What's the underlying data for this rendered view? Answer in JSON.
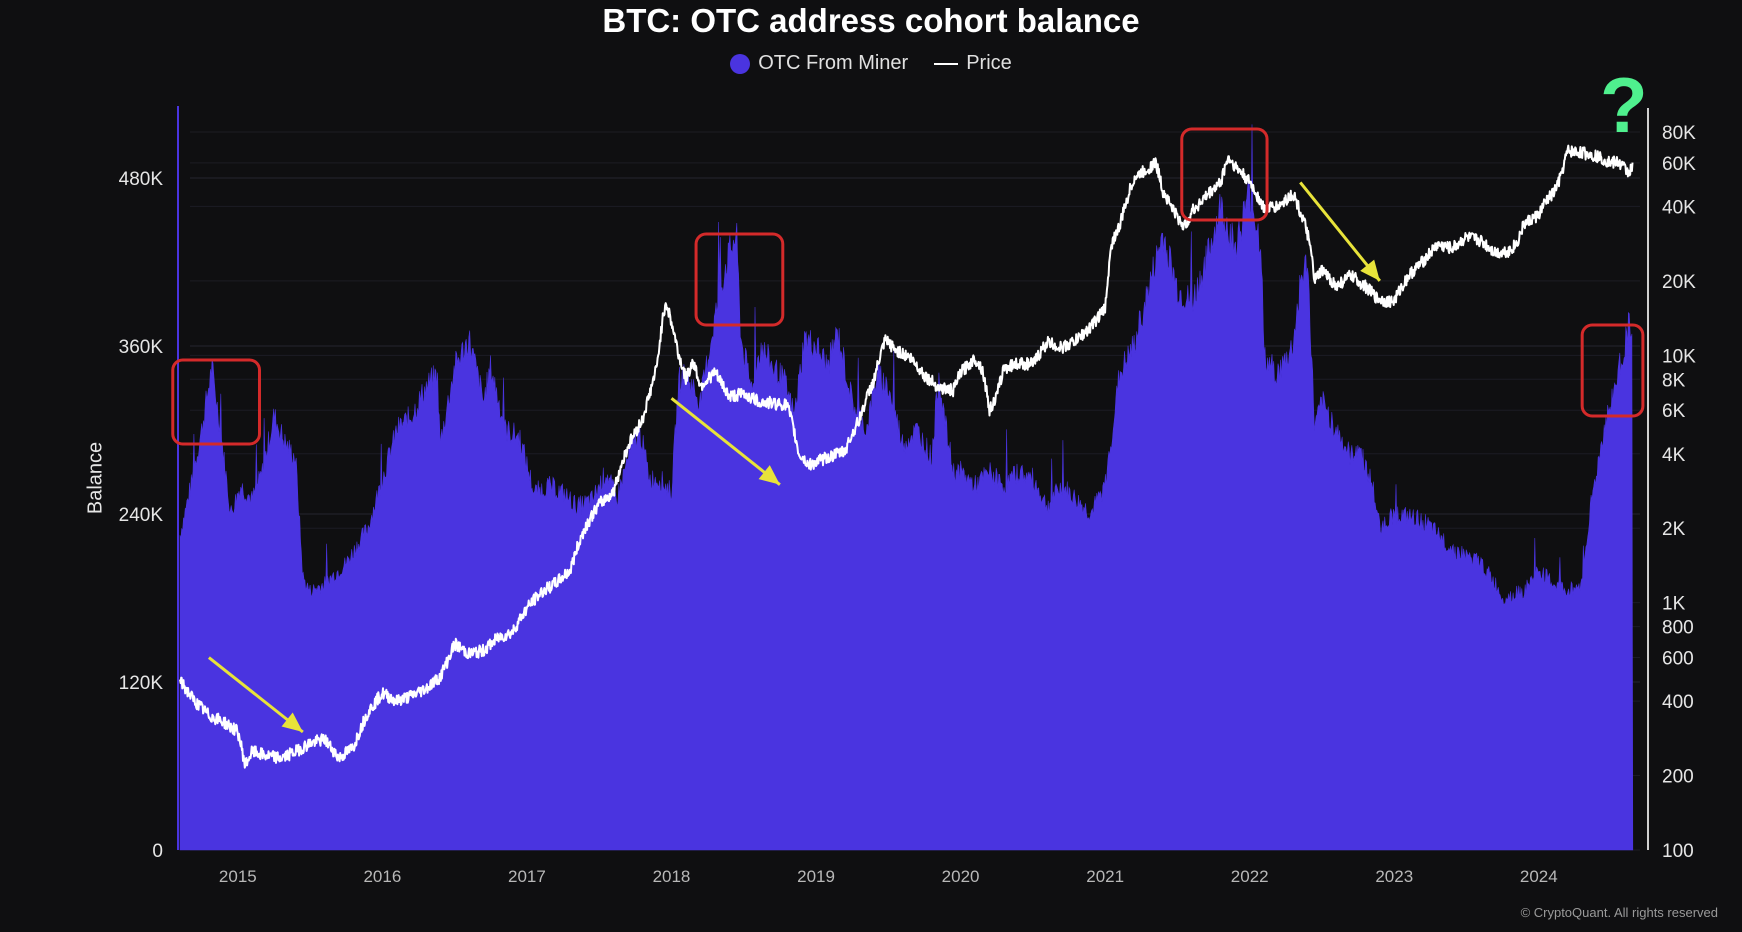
{
  "chart_data": {
    "type": "area",
    "title": "BTC: OTC address cohort balance",
    "ylabel": "Balance",
    "legend": [
      "OTC From Miner",
      "Price"
    ],
    "legend_position": "top-center",
    "grid": true,
    "x_ticks": [
      "2015",
      "2016",
      "2017",
      "2018",
      "2019",
      "2020",
      "2021",
      "2022",
      "2023",
      "2024"
    ],
    "y_left_ticks": [
      "0",
      "120K",
      "240K",
      "360K",
      "480K"
    ],
    "y_left_lim": [
      0,
      530000
    ],
    "y_right_ticks": [
      "100",
      "200",
      "400",
      "600",
      "800",
      "1K",
      "2K",
      "4K",
      "6K",
      "8K",
      "10K",
      "20K",
      "40K",
      "60K",
      "80K"
    ],
    "y_right_lim": [
      100,
      100000
    ],
    "y_right_scale": "log",
    "x_range": [
      2014.6,
      2024.7
    ],
    "series": [
      {
        "name": "OTC From Miner",
        "type": "area",
        "color": "#4a34e0",
        "x": [
          2014.6,
          2014.68,
          2014.75,
          2014.82,
          2014.88,
          2014.95,
          2015.02,
          2015.1,
          2015.17,
          2015.25,
          2015.33,
          2015.4,
          2015.45,
          2015.47,
          2015.5,
          2015.6,
          2015.75,
          2015.9,
          2016.0,
          2016.1,
          2016.2,
          2016.3,
          2016.38,
          2016.4,
          2016.5,
          2016.6,
          2016.7,
          2016.75,
          2016.85,
          2016.95,
          2017.05,
          2017.15,
          2017.25,
          2017.35,
          2017.45,
          2017.55,
          2017.62,
          2017.7,
          2017.78,
          2017.85,
          2017.92,
          2018.0,
          2018.05,
          2018.1,
          2018.2,
          2018.3,
          2018.38,
          2018.45,
          2018.48,
          2018.52,
          2018.55,
          2018.62,
          2018.7,
          2018.78,
          2018.85,
          2018.92,
          2019.0,
          2019.08,
          2019.15,
          2019.25,
          2019.35,
          2019.42,
          2019.5,
          2019.6,
          2019.7,
          2019.8,
          2019.85,
          2019.9,
          2019.95,
          2020.0,
          2020.1,
          2020.2,
          2020.3,
          2020.4,
          2020.5,
          2020.6,
          2020.7,
          2020.8,
          2020.9,
          2021.0,
          2021.05,
          2021.1,
          2021.2,
          2021.3,
          2021.4,
          2021.5,
          2021.6,
          2021.7,
          2021.8,
          2021.9,
          2022.0,
          2022.08,
          2022.1,
          2022.2,
          2022.3,
          2022.35,
          2022.4,
          2022.45,
          2022.5,
          2022.6,
          2022.7,
          2022.75,
          2022.85,
          2022.9,
          2023.0,
          2023.2,
          2023.4,
          2023.6,
          2023.7,
          2023.75,
          2023.9,
          2024.0,
          2024.1,
          2024.2,
          2024.3,
          2024.35,
          2024.45,
          2024.55,
          2024.62,
          2024.65
        ],
        "values": [
          225000,
          262000,
          300000,
          345000,
          300000,
          240000,
          260000,
          250000,
          270000,
          310000,
          290000,
          280000,
          195000,
          190000,
          185000,
          190000,
          205000,
          230000,
          265000,
          300000,
          310000,
          330000,
          340000,
          290000,
          345000,
          365000,
          320000,
          345000,
          300000,
          295000,
          255000,
          260000,
          255000,
          245000,
          250000,
          270000,
          250000,
          280000,
          300000,
          265000,
          265000,
          255000,
          335000,
          340000,
          320000,
          380000,
          420000,
          440000,
          365000,
          345000,
          330000,
          360000,
          345000,
          335000,
          310000,
          365000,
          360000,
          345000,
          370000,
          320000,
          300000,
          340000,
          330000,
          290000,
          300000,
          280000,
          340000,
          300000,
          270000,
          270000,
          260000,
          270000,
          260000,
          270000,
          265000,
          245000,
          260000,
          250000,
          240000,
          260000,
          300000,
          340000,
          360000,
          400000,
          440000,
          400000,
          390000,
          420000,
          460000,
          430000,
          470000,
          430000,
          350000,
          340000,
          360000,
          405000,
          420000,
          300000,
          320000,
          300000,
          280000,
          290000,
          260000,
          230000,
          240000,
          235000,
          215000,
          205000,
          190000,
          180000,
          185000,
          200000,
          190000,
          185000,
          190000,
          240000,
          300000,
          340000,
          375000,
          360000
        ]
      },
      {
        "name": "Price",
        "type": "line",
        "color": "#ffffff",
        "x": [
          2014.6,
          2014.7,
          2014.8,
          2014.9,
          2015.0,
          2015.05,
          2015.1,
          2015.2,
          2015.3,
          2015.4,
          2015.5,
          2015.6,
          2015.7,
          2015.8,
          2015.9,
          2016.0,
          2016.1,
          2016.2,
          2016.3,
          2016.4,
          2016.45,
          2016.5,
          2016.6,
          2016.7,
          2016.8,
          2016.9,
          2017.0,
          2017.1,
          2017.2,
          2017.3,
          2017.4,
          2017.5,
          2017.6,
          2017.7,
          2017.8,
          2017.85,
          2017.9,
          2017.96,
          2018.0,
          2018.05,
          2018.1,
          2018.15,
          2018.2,
          2018.3,
          2018.4,
          2018.5,
          2018.6,
          2018.7,
          2018.8,
          2018.88,
          2018.95,
          2019.0,
          2019.1,
          2019.2,
          2019.3,
          2019.4,
          2019.48,
          2019.55,
          2019.65,
          2019.75,
          2019.85,
          2019.95,
          2020.0,
          2020.1,
          2020.15,
          2020.2,
          2020.25,
          2020.3,
          2020.4,
          2020.5,
          2020.6,
          2020.7,
          2020.8,
          2020.9,
          2021.0,
          2021.05,
          2021.1,
          2021.2,
          2021.3,
          2021.35,
          2021.4,
          2021.5,
          2021.55,
          2021.6,
          2021.7,
          2021.8,
          2021.85,
          2021.9,
          2022.0,
          2022.1,
          2022.2,
          2022.3,
          2022.4,
          2022.45,
          2022.5,
          2022.6,
          2022.7,
          2022.8,
          2022.88,
          2022.95,
          2023.0,
          2023.1,
          2023.2,
          2023.3,
          2023.4,
          2023.5,
          2023.6,
          2023.7,
          2023.8,
          2023.85,
          2023.9,
          2024.0,
          2024.05,
          2024.1,
          2024.15,
          2024.2,
          2024.3,
          2024.4,
          2024.5,
          2024.55,
          2024.62,
          2024.65
        ],
        "values": [
          480,
          400,
          350,
          330,
          300,
          220,
          250,
          240,
          235,
          250,
          270,
          280,
          235,
          260,
          360,
          430,
          400,
          420,
          450,
          500,
          580,
          680,
          620,
          640,
          720,
          760,
          950,
          1100,
          1200,
          1350,
          2000,
          2500,
          2800,
          4300,
          5500,
          7000,
          9000,
          16500,
          13500,
          10000,
          8000,
          9500,
          7500,
          8500,
          6800,
          7000,
          6500,
          6400,
          6300,
          4000,
          3600,
          3700,
          3900,
          4100,
          5500,
          7900,
          11500,
          10500,
          9800,
          8300,
          7400,
          7200,
          8500,
          9700,
          8800,
          6000,
          6800,
          8900,
          9300,
          9200,
          11300,
          10700,
          11500,
          13000,
          15500,
          29000,
          33000,
          52000,
          57000,
          60000,
          46000,
          36000,
          33000,
          38000,
          44000,
          50000,
          63000,
          58000,
          50000,
          39000,
          40000,
          45000,
          31000,
          20000,
          22000,
          19000,
          21000,
          19000,
          17000,
          16500,
          16600,
          21000,
          24000,
          28000,
          27000,
          30000,
          29000,
          26000,
          26500,
          28500,
          34000,
          37000,
          42000,
          45000,
          52000,
          67000,
          66000,
          64000,
          60000,
          60500,
          55000,
          58000
        ]
      }
    ],
    "annotations": {
      "highlight_box_color": "#d42a2a",
      "arrow_color": "#e8e33a",
      "highlight_boxes": [
        {
          "x": [
            2014.55,
            2015.15
          ],
          "y_left": [
            290000,
            350000
          ]
        },
        {
          "x": [
            2018.17,
            2018.77
          ],
          "y_left": [
            375000,
            440000
          ]
        },
        {
          "x": [
            2021.53,
            2022.12
          ],
          "y_left": [
            450000,
            515000
          ]
        },
        {
          "x": [
            2024.3,
            2024.72
          ],
          "y_left": [
            310000,
            375000
          ]
        }
      ],
      "arrows": [
        {
          "from": [
            2014.8,
            600
          ],
          "to": [
            2015.45,
            300
          ]
        },
        {
          "from": [
            2018.0,
            6700
          ],
          "to": [
            2018.75,
            3000
          ]
        },
        {
          "from": [
            2022.35,
            50000
          ],
          "to": [
            2022.9,
            20000
          ]
        }
      ],
      "marker_text": "?",
      "marker_color": "#4ff08e"
    }
  },
  "credit": "© CryptoQuant. All rights reserved"
}
